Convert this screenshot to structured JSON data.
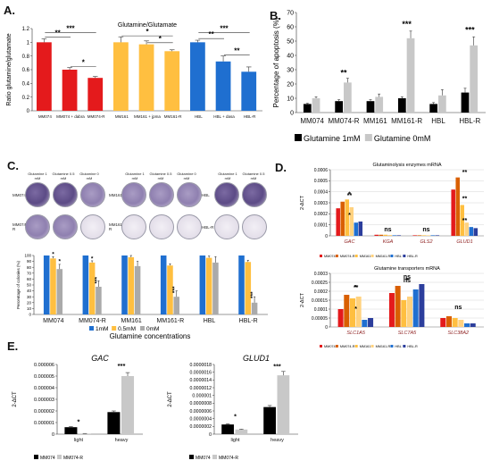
{
  "panel_labels": {
    "a": "A.",
    "b": "B.",
    "c": "C.",
    "d": "D.",
    "e": "E."
  },
  "colonies": {
    "conditions": [
      "Glutamine 1 mM",
      "Glutamine 0.5 mM",
      "Glutamine 0 mM"
    ],
    "cell_lines": [
      "MM074",
      "MM074-R",
      "MM161",
      "MM161-R",
      "HBL",
      "HBL-R"
    ]
  },
  "chart_data": [
    {
      "id": "A",
      "type": "bar",
      "title": "Glutamine/Glutamate",
      "ylabel": "Ratio glutamine/glutamate",
      "ylim": [
        0,
        1.2
      ],
      "yticks": [
        "0",
        "0.2",
        "0.4",
        "0.6",
        "0.8",
        "1",
        "1.2"
      ],
      "categories": [
        "MM074",
        "MM074 + dabra",
        "MM074-R",
        "MM161",
        "MM161 + jpma",
        "MM161-R",
        "HBL",
        "HBL + dasa",
        "HBL-R"
      ],
      "values": [
        1.0,
        0.6,
        0.48,
        1.0,
        0.97,
        0.87,
        1.0,
        0.72,
        0.57
      ],
      "errors": [
        0.05,
        0.03,
        0.02,
        0.08,
        0.05,
        0.02,
        0.03,
        0.08,
        0.07
      ],
      "colors": [
        "#e41a1c",
        "#e41a1c",
        "#e41a1c",
        "#ffbf40",
        "#ffbf40",
        "#ffbf40",
        "#1f6fd0",
        "#1f6fd0",
        "#1f6fd0"
      ],
      "tick_labels": [
        "MM074",
        "MM074 + dabra",
        "MM074-R",
        "MM161",
        "MM161 + jpma",
        "MM161-R",
        "HBL",
        "HBL + dasa",
        "HBL-R"
      ],
      "significance": [
        {
          "label": "**",
          "from": 0,
          "to": 1,
          "y": 1.1
        },
        {
          "label": "***",
          "from": 0,
          "to": 2,
          "y": 1.17
        },
        {
          "label": "*",
          "from": 1,
          "to": 2,
          "y": 0.67
        },
        {
          "label": "*",
          "from": 3,
          "to": 5,
          "y": 1.12
        },
        {
          "label": "*",
          "from": 4,
          "to": 5,
          "y": 1.02
        },
        {
          "label": "***",
          "from": 6,
          "to": 8,
          "y": 1.17
        },
        {
          "label": "**",
          "from": 6,
          "to": 7,
          "y": 1.08
        },
        {
          "label": "**",
          "from": 7,
          "to": 8,
          "y": 0.84
        }
      ]
    },
    {
      "id": "B",
      "type": "bar",
      "ylabel": "Percentage of apoptosis (%)",
      "ylim": [
        0,
        70
      ],
      "yticks": [
        "0",
        "10",
        "20",
        "30",
        "40",
        "50",
        "60",
        "70"
      ],
      "categories": [
        "MM074",
        "MM074-R",
        "MM161",
        "MM161-R",
        "HBL",
        "HBL-R"
      ],
      "series": [
        {
          "name": "Glutamine 1mM",
          "color": "#000000",
          "values": [
            6,
            8,
            8,
            10,
            6,
            14
          ],
          "errors": [
            0.5,
            1,
            1,
            1,
            1,
            3
          ]
        },
        {
          "name": "Glutamine 0mM",
          "color": "#c8c8c8",
          "values": [
            10,
            21,
            11,
            52,
            12,
            47
          ],
          "errors": [
            1,
            3,
            2,
            5,
            4,
            6
          ]
        }
      ],
      "significance": [
        {
          "label": "**",
          "category": 1,
          "y": 26
        },
        {
          "label": "***",
          "category": 3,
          "y": 60
        },
        {
          "label": "***",
          "category": 5,
          "y": 56
        }
      ]
    },
    {
      "id": "C",
      "type": "bar",
      "ylabel": "Percentage of colonies (%)",
      "xlabel": "Glutamine concentrations",
      "ylim": [
        0,
        100
      ],
      "yticks": [
        "0",
        "10",
        "20",
        "30",
        "40",
        "50",
        "60",
        "70",
        "80",
        "90",
        "100"
      ],
      "categories": [
        "MM074",
        "MM074-R",
        "MM161",
        "MM161-R",
        "HBL",
        "HBL-R"
      ],
      "series": [
        {
          "name": "1mM",
          "color": "#1f6fd0",
          "values": [
            100,
            100,
            100,
            100,
            100,
            100
          ],
          "errors": [
            0,
            0,
            0,
            0,
            0,
            0
          ]
        },
        {
          "name": "0.5mM",
          "color": "#ffbf40",
          "values": [
            95,
            88,
            97,
            83,
            96,
            89
          ],
          "errors": [
            3,
            3,
            3,
            3,
            3,
            3
          ]
        },
        {
          "name": "0mM",
          "color": "#aaaaaa",
          "values": [
            77,
            47,
            82,
            30,
            88,
            20
          ],
          "errors": [
            8,
            10,
            8,
            10,
            10,
            10
          ]
        }
      ],
      "significance": [
        {
          "label": "*",
          "category": 0,
          "series": 1,
          "y": 99
        },
        {
          "label": "*",
          "category": 0,
          "series": 2,
          "y": 87
        },
        {
          "label": "*",
          "category": 1,
          "series": 1,
          "y": 92
        },
        {
          "label": "***",
          "category": 1,
          "series": 2,
          "y": 58
        },
        {
          "label": "***",
          "category": 3,
          "series": 2,
          "y": 42
        },
        {
          "label": "***",
          "category": 5,
          "series": 2,
          "y": 33
        }
      ]
    },
    {
      "id": "D1",
      "type": "bar",
      "title": "Glutaminolysis enzymes mRNA",
      "ylabel": "2-ΔCT",
      "ylim": [
        0,
        0.0006
      ],
      "yticks": [
        "0",
        "0.0001",
        "0.0002",
        "0.0003",
        "0.0004",
        "0.0005",
        "0.0006"
      ],
      "categories": [
        "GAC",
        "KGA",
        "GLS2",
        "GLUD1"
      ],
      "series": [
        {
          "name": "MM074",
          "color": "#e41a1c",
          "values": [
            0.00025,
            1e-05,
            5e-06,
            0.00042
          ]
        },
        {
          "name": "MM074-R",
          "color": "#d95f02",
          "values": [
            0.00031,
            1e-05,
            5e-06,
            0.00053
          ]
        },
        {
          "name": "MM161",
          "color": "#ffbf40",
          "values": [
            0.00033,
            1e-05,
            5e-06,
            0.00028
          ]
        },
        {
          "name": "MM161-R",
          "color": "#ffd27f",
          "values": [
            0.00026,
            8e-06,
            5e-06,
            0.00012
          ]
        },
        {
          "name": "HBL",
          "color": "#1f6fd0",
          "values": [
            0.00012,
            5e-06,
            5e-06,
            8e-05
          ]
        },
        {
          "name": "HBL-R",
          "color": "#2c3e9c",
          "values": [
            0.00013,
            5e-06,
            5e-06,
            7e-05
          ]
        }
      ],
      "significance": [
        {
          "label": "**",
          "category": 0,
          "y": 0.00035
        },
        {
          "label": "*",
          "category": 0,
          "y": 0.00036
        },
        {
          "label": "*",
          "category": 0,
          "y": 0.00017
        },
        {
          "label": "ns",
          "category": 1,
          "y": 4e-05
        },
        {
          "label": "ns",
          "category": 2,
          "y": 4e-05
        },
        {
          "label": "**",
          "category": 3,
          "y": 0.00056
        },
        {
          "label": "**",
          "category": 3,
          "y": 0.00032
        },
        {
          "label": "**",
          "category": 3,
          "y": 0.00012
        }
      ]
    },
    {
      "id": "D2",
      "type": "bar",
      "title": "Glutamine transporters mRNA",
      "ylabel": "2-ΔCT",
      "ylim": [
        0,
        0.0003
      ],
      "yticks": [
        "0",
        "0.00005",
        "0.0001",
        "0.00015",
        "0.0002",
        "0.00025",
        "0.0003"
      ],
      "categories": [
        "SLC1A5",
        "SLC7A5",
        "SLC38A2"
      ],
      "series": [
        {
          "name": "MM074",
          "color": "#e41a1c",
          "values": [
            0.0001,
            0.00019,
            5e-05
          ]
        },
        {
          "name": "MM074-R",
          "color": "#d95f02",
          "values": [
            0.00018,
            0.00023,
            6e-05
          ]
        },
        {
          "name": "MM161",
          "color": "#ffbf40",
          "values": [
            0.00016,
            0.00015,
            5e-05
          ]
        },
        {
          "name": "MM161-R",
          "color": "#ffd27f",
          "values": [
            0.00017,
            0.00017,
            4e-05
          ]
        },
        {
          "name": "HBL",
          "color": "#1f6fd0",
          "values": [
            4e-05,
            0.00021,
            2e-05
          ]
        },
        {
          "name": "HBL-R",
          "color": "#2c3e9c",
          "values": [
            5e-05,
            0.00024,
            2e-05
          ]
        }
      ],
      "significance": [
        {
          "label": "**",
          "category": 0,
          "y": 0.00021
        },
        {
          "label": "*",
          "category": 0,
          "y": 0.00021
        },
        {
          "label": "*",
          "category": 0,
          "y": 9e-05
        },
        {
          "label": "ns",
          "category": 1,
          "y": 0.00027
        },
        {
          "label": "*",
          "category": 1,
          "y": 0.00025
        },
        {
          "label": "ns",
          "category": 1,
          "y": 0.00025
        },
        {
          "label": "ns",
          "category": 2,
          "y": 0.0001
        }
      ]
    },
    {
      "id": "E1",
      "type": "bar",
      "title": "GAC",
      "ylabel": "2-ΔCT",
      "ylim": [
        0,
        6e-06
      ],
      "yticks": [
        "0",
        "0.000001",
        "0.000002",
        "0.000003",
        "0.000004",
        "0.000005",
        "0.000006"
      ],
      "categories": [
        "light",
        "heavy"
      ],
      "series": [
        {
          "name": "MM074",
          "color": "#000000",
          "values": [
            6e-07,
            1.9e-06
          ],
          "errors": [
            5e-08,
            1e-07
          ]
        },
        {
          "name": "MM074-R",
          "color": "#c8c8c8",
          "values": [
            5e-08,
            5e-06
          ],
          "errors": [
            1e-08,
            3e-07
          ]
        }
      ],
      "significance": [
        {
          "label": "*",
          "category": 0,
          "y": 9e-07
        },
        {
          "label": "***",
          "category": 1,
          "y": 5.7e-06
        }
      ]
    },
    {
      "id": "E2",
      "type": "bar",
      "title": "GLUD1",
      "ylabel": "2-ΔCT",
      "ylim": [
        0,
        1.8e-06
      ],
      "yticks": [
        "0",
        "0.0000002",
        "0.0000004",
        "0.0000006",
        "0.0000008",
        "0.000001",
        "0.0000012",
        "0.0000014",
        "0.0000016",
        "0.0000018"
      ],
      "categories": [
        "light",
        "heavy"
      ],
      "series": [
        {
          "name": "MM074",
          "color": "#000000",
          "values": [
            2.5e-07,
            7e-07
          ],
          "errors": [
            2e-08,
            4e-08
          ]
        },
        {
          "name": "MM074-R",
          "color": "#c8c8c8",
          "values": [
            1.2e-07,
            1.52e-06
          ],
          "errors": [
            1e-08,
            1e-07
          ]
        }
      ],
      "significance": [
        {
          "label": "*",
          "category": 0,
          "y": 4e-07
        },
        {
          "label": "***",
          "category": 1,
          "y": 1.7e-06
        }
      ]
    }
  ]
}
